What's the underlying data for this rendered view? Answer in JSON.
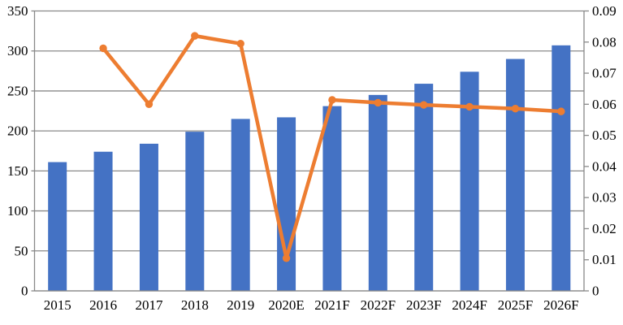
{
  "chart": {
    "title": "",
    "background": "#FFFFFF"
  },
  "chart_data": {
    "type": "combo-bar-line",
    "title": "",
    "xlabel": "",
    "ylabel_left": "",
    "ylabel_right": "",
    "legend": "none",
    "grid": true,
    "grid_color": "#898989",
    "text_color": "#000000",
    "background": "#FFFFFF",
    "categories": [
      "2015",
      "2016",
      "2017",
      "2018",
      "2019",
      "2020E",
      "2021F",
      "2022F",
      "2023F",
      "2024F",
      "2025F",
      "2026F"
    ],
    "series": [
      {
        "name": "value-bars",
        "type": "bar",
        "axis": "left",
        "color": "#4472C4",
        "values": [
          161,
          174,
          184,
          199,
          215,
          217,
          231,
          245,
          259,
          274,
          290,
          307
        ]
      },
      {
        "name": "growth-rate-line",
        "type": "line",
        "axis": "right",
        "color": "#ED7D31",
        "values": [
          null,
          0.078,
          0.06,
          0.082,
          0.0795,
          0.0105,
          0.0614,
          0.0605,
          0.0598,
          0.0592,
          0.0586,
          0.0577
        ]
      }
    ],
    "left_axis": {
      "min": 0,
      "max": 350,
      "step": 50,
      "tick_labels": [
        "0",
        "50",
        "100",
        "150",
        "200",
        "250",
        "300",
        "350"
      ]
    },
    "right_axis": {
      "min": 0,
      "max": 0.09,
      "step": 0.01,
      "tick_labels": [
        "0",
        "0.01",
        "0.02",
        "0.03",
        "0.04",
        "0.05",
        "0.06",
        "0.07",
        "0.08",
        "0.09"
      ]
    }
  }
}
